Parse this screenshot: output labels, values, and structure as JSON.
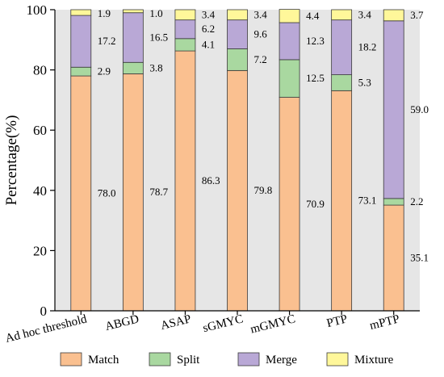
{
  "chart_data": {
    "type": "bar",
    "stacked": true,
    "percent_stacked": true,
    "categories": [
      "Ad hoc threshold",
      "ABGD",
      "ASAP",
      "sGMYC",
      "mGMYC",
      "PTP",
      "mPTP"
    ],
    "series": [
      {
        "name": "Match",
        "color": "#FAC090",
        "values": [
          78.0,
          78.7,
          86.3,
          79.8,
          70.9,
          73.1,
          35.1
        ]
      },
      {
        "name": "Split",
        "color": "#A9D8A0",
        "values": [
          2.9,
          3.8,
          4.1,
          7.2,
          12.5,
          5.3,
          2.2
        ]
      },
      {
        "name": "Merge",
        "color": "#B9A8D6",
        "values": [
          17.2,
          16.5,
          6.2,
          9.6,
          12.3,
          18.2,
          59.0
        ]
      },
      {
        "name": "Mixture",
        "color": "#FFF79A",
        "values": [
          1.9,
          1.0,
          3.4,
          3.4,
          4.4,
          3.4,
          3.7
        ]
      }
    ],
    "data_labels": {
      "Match": [
        "78.0",
        "78.7",
        "86.3",
        "79.8",
        "70.9",
        "73.1",
        "35.1"
      ],
      "Split": [
        "2.9",
        "3.8",
        "4.1",
        "7.2",
        "12.5",
        "5.3",
        "2.2"
      ],
      "Merge": [
        "17.2",
        "16.5",
        "6.2",
        "9.6",
        "12.3",
        "18.2",
        "59.0"
      ],
      "Mixture": [
        "1.9",
        "1.0",
        "3.4",
        "3.4",
        "4.4",
        "3.4",
        "3.7"
      ]
    },
    "ylabel": "Percentage(%)",
    "xlabel": "",
    "title": "",
    "ylim": [
      0,
      100
    ],
    "yticks": [
      0,
      20,
      40,
      60,
      80,
      100
    ],
    "ytick_labels": [
      "0",
      "20",
      "40",
      "60",
      "80",
      "100"
    ],
    "grid": false,
    "legend_position": "bottom",
    "plot_background": "#E6E6E6"
  }
}
